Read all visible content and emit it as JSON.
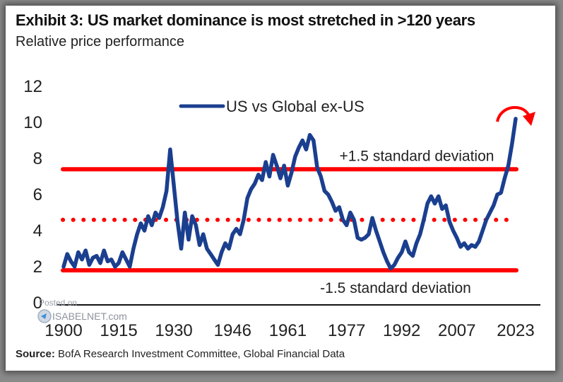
{
  "header": {
    "title": "Exhibit 3: US market dominance is most stretched in >120 years",
    "subtitle": "Relative price performance"
  },
  "footer": {
    "source_label": "Source:",
    "source_text": "BofA Research Investment Committee, Global Financial Data"
  },
  "watermark": {
    "line1": "Posted on",
    "line2": "ISABELNET.com"
  },
  "colors": {
    "series": "#1b3f8f",
    "bands": "#ff0000",
    "axis": "#111111"
  },
  "chart_data": {
    "type": "line",
    "title": "Exhibit 3: US market dominance is most stretched in >120 years",
    "subtitle": "Relative price performance",
    "xlabel": "",
    "ylabel": "",
    "xlim": [
      1900,
      2023
    ],
    "ylim": [
      0,
      12
    ],
    "y_ticks": [
      0,
      2,
      4,
      6,
      8,
      10,
      12
    ],
    "y_tick_labels": [
      "0",
      "2",
      "4",
      "6",
      "8",
      "10",
      "12"
    ],
    "x_ticks": [
      1900,
      1915,
      1930,
      1946,
      1961,
      1977,
      1992,
      2007,
      2023
    ],
    "x_tick_labels": [
      "1900",
      "1915",
      "1930",
      "1946",
      "1961",
      "1977",
      "1992",
      "2007",
      "2023"
    ],
    "grid": false,
    "legend": {
      "placement": "top-center",
      "entries": [
        "US vs Global ex-US"
      ]
    },
    "series": [
      {
        "name": "US vs Global ex-US",
        "x": [
          1900,
          1901,
          1902,
          1903,
          1904,
          1905,
          1906,
          1907,
          1908,
          1909,
          1910,
          1911,
          1912,
          1913,
          1914,
          1915,
          1916,
          1917,
          1918,
          1919,
          1920,
          1921,
          1922,
          1923,
          1924,
          1925,
          1926,
          1927,
          1928,
          1929,
          1930,
          1931,
          1932,
          1933,
          1934,
          1935,
          1936,
          1937,
          1938,
          1939,
          1940,
          1941,
          1942,
          1943,
          1944,
          1945,
          1946,
          1947,
          1948,
          1949,
          1950,
          1951,
          1952,
          1953,
          1954,
          1955,
          1956,
          1957,
          1958,
          1959,
          1960,
          1961,
          1962,
          1963,
          1964,
          1965,
          1966,
          1967,
          1968,
          1969,
          1970,
          1971,
          1972,
          1973,
          1974,
          1975,
          1976,
          1977,
          1978,
          1979,
          1980,
          1981,
          1982,
          1983,
          1984,
          1985,
          1986,
          1987,
          1988,
          1989,
          1990,
          1991,
          1992,
          1993,
          1994,
          1995,
          1996,
          1997,
          1998,
          1999,
          2000,
          2001,
          2002,
          2003,
          2004,
          2005,
          2006,
          2007,
          2008,
          2009,
          2010,
          2011,
          2012,
          2013,
          2014,
          2015,
          2016,
          2017,
          2018,
          2019,
          2020,
          2021,
          2022,
          2023
        ],
        "values": [
          2.0,
          2.7,
          2.3,
          2.0,
          2.8,
          2.4,
          2.9,
          2.1,
          2.5,
          2.6,
          2.2,
          2.9,
          2.3,
          2.4,
          2.0,
          2.2,
          2.8,
          2.4,
          2.0,
          3.0,
          3.8,
          4.4,
          4.0,
          4.8,
          4.3,
          5.0,
          4.7,
          5.3,
          6.2,
          8.5,
          6.5,
          4.5,
          3.0,
          5.0,
          3.5,
          4.8,
          4.3,
          3.2,
          3.8,
          3.0,
          2.7,
          2.4,
          2.1,
          2.8,
          3.3,
          3.0,
          3.8,
          4.1,
          3.8,
          4.6,
          5.8,
          6.3,
          6.6,
          7.1,
          6.8,
          7.8,
          7.0,
          8.2,
          7.6,
          6.9,
          7.6,
          6.5,
          7.2,
          8.1,
          8.6,
          9.0,
          8.5,
          9.3,
          9.0,
          7.5,
          7.0,
          6.2,
          6.0,
          5.6,
          5.1,
          5.3,
          4.6,
          4.3,
          5.0,
          4.6,
          3.6,
          3.5,
          3.6,
          3.8,
          4.7,
          4.0,
          3.4,
          2.8,
          2.3,
          1.9,
          2.1,
          2.5,
          2.8,
          3.4,
          2.8,
          2.6,
          3.3,
          3.8,
          4.6,
          5.5,
          5.9,
          5.5,
          5.9,
          5.2,
          5.4,
          4.5,
          4.0,
          3.6,
          3.1,
          3.3,
          3.0,
          3.2,
          3.1,
          3.4,
          4.0,
          4.6,
          5.0,
          5.4,
          6.0,
          6.1,
          6.9,
          7.6,
          8.8,
          10.2
        ]
      }
    ],
    "reference_lines": [
      {
        "name": "+1.5 standard deviation",
        "value": 7.4,
        "style": "solid",
        "label": "+1.5 standard deviation"
      },
      {
        "name": "mean",
        "value": 4.6,
        "style": "dotted",
        "label": ""
      },
      {
        "name": "-1.5 standard deviation",
        "value": 1.8,
        "style": "solid",
        "label": "-1.5 standard deviation"
      }
    ],
    "annotations": [
      {
        "type": "curved-arrow",
        "description": "red arrow curving down at latest point",
        "x": 2023,
        "y": 10.2
      }
    ]
  }
}
